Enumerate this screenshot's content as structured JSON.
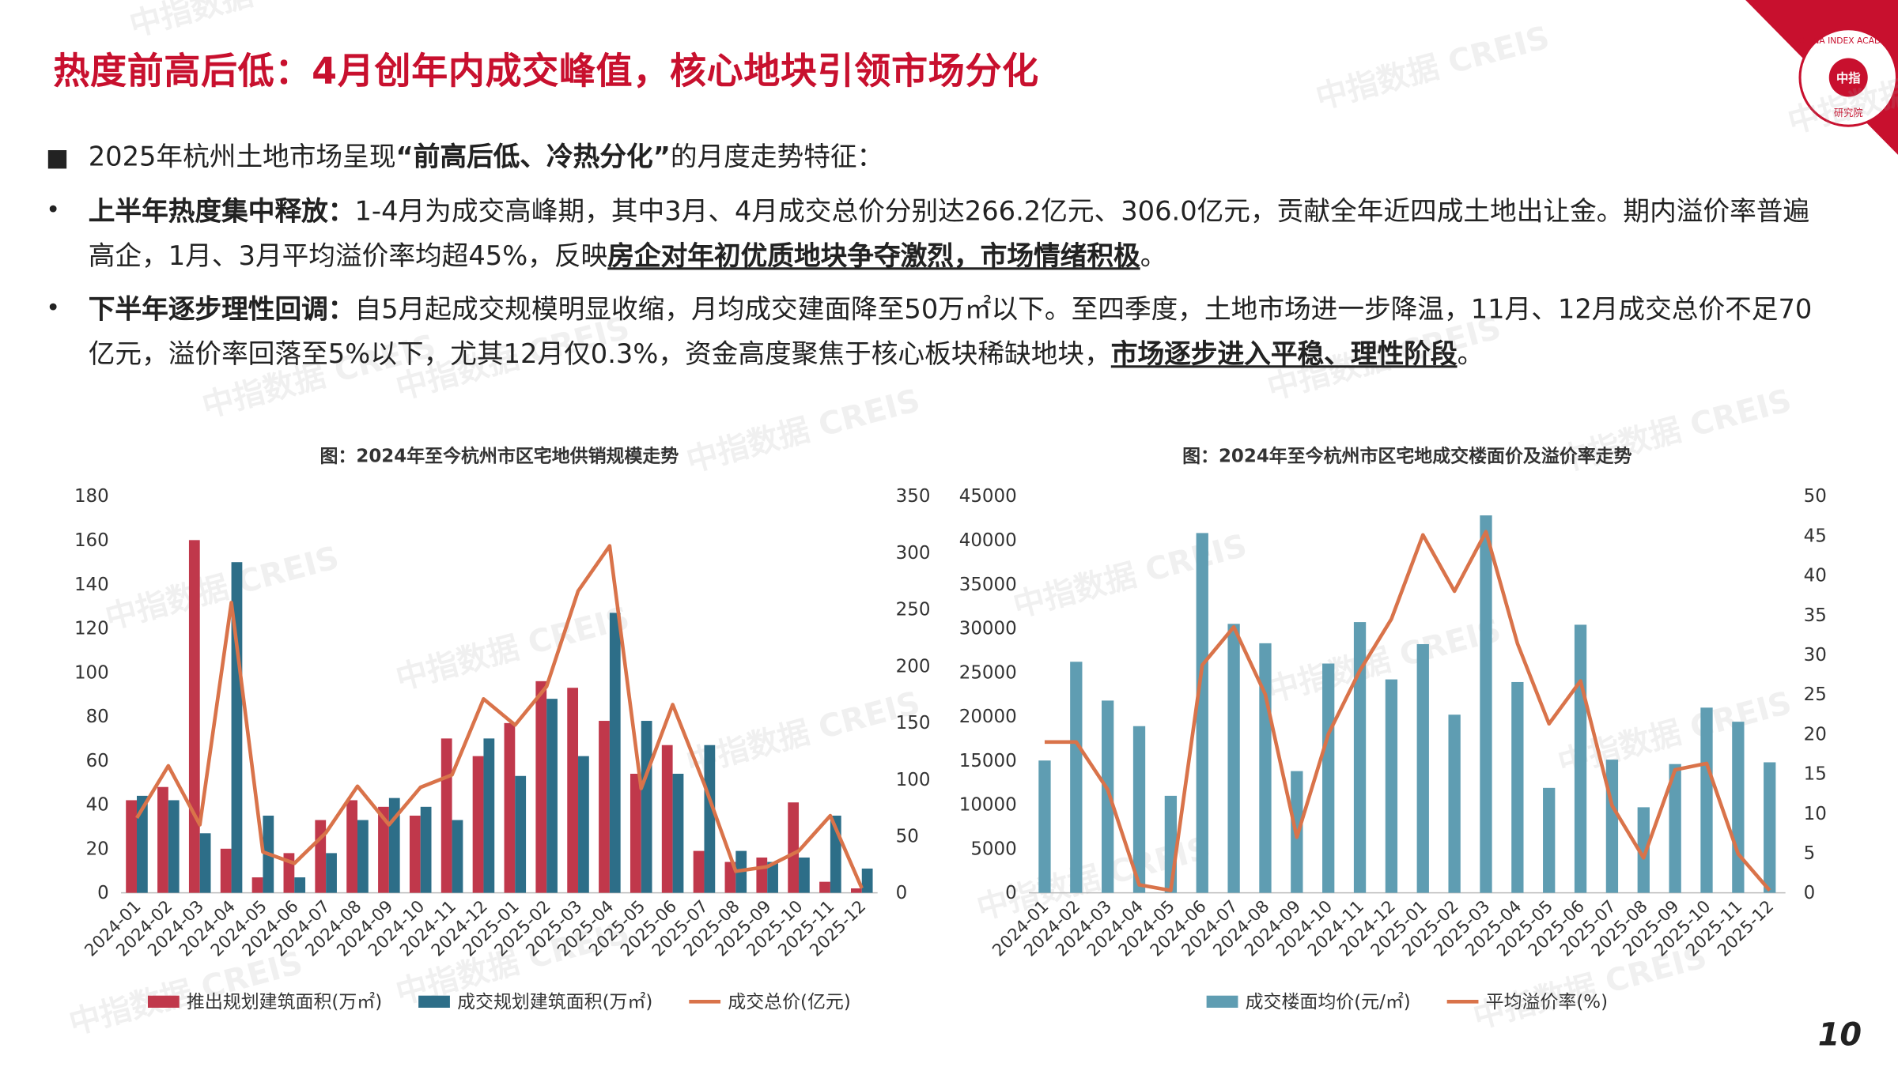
{
  "header": {
    "title": "热度前高后低：4月创年内成交峰值，核心地块引领市场分化"
  },
  "logo": {
    "en": "CHINA INDEX ACADEMY",
    "cn": "中指",
    "sub": "研究院"
  },
  "page_number": "10",
  "watermark": "中指数据 CREIS",
  "bullets": [
    [
      "2025年杭州土地市场呈现",
      "“前高后低、冷热分化”",
      "的月度走势特征："
    ],
    [
      "上半年热度集中释放：",
      "1-4月为成交高峰期，其中3月、4月成交总价分别达266.2亿元、306.0亿元，贡献全年近四成土地出让金。期内溢价率普遍高企，1月、3月平均溢价率均超45%，反映",
      "房企对年初优质地块争夺激烈，市场情绪积极",
      "。"
    ],
    [
      "下半年逐步理性回调：",
      "自5月起成交规模明显收缩，月均成交建面降至50万㎡以下。至四季度，土地市场进一步降温，11月、12月成交总价不足70亿元，溢价率回落至5%以下，尤其12月仅0.3%，资金高度聚焦于核心板块稀缺地块，",
      "市场逐步进入平稳、理性阶段",
      "。"
    ]
  ],
  "chart_data": [
    {
      "type": "bar_line",
      "title": "图：2024年至今杭州市区宅地供销规模走势",
      "categories": [
        "2024-01",
        "2024-02",
        "2024-03",
        "2024-04",
        "2024-05",
        "2024-06",
        "2024-07",
        "2024-08",
        "2024-09",
        "2024-10",
        "2024-11",
        "2024-12",
        "2025-01",
        "2025-02",
        "2025-03",
        "2025-04",
        "2025-05",
        "2025-06",
        "2025-07",
        "2025-08",
        "2025-09",
        "2025-10",
        "2025-11",
        "2025-12"
      ],
      "ylim": [
        0,
        180
      ],
      "yticks": [
        0,
        20,
        40,
        60,
        80,
        100,
        120,
        140,
        160,
        180
      ],
      "y2lim": [
        0,
        350
      ],
      "y2ticks": [
        0,
        50,
        100,
        150,
        200,
        250,
        300,
        350
      ],
      "series": [
        {
          "name": "推出规划建筑面积(万㎡)",
          "kind": "bar",
          "color": "#c0384b",
          "values": [
            42,
            48,
            160,
            20,
            7,
            18,
            33,
            42,
            39,
            35,
            70,
            62,
            77,
            96,
            93,
            78,
            54,
            67,
            19,
            14,
            16,
            41,
            5,
            2
          ]
        },
        {
          "name": "成交规划建筑面积(万㎡)",
          "kind": "bar",
          "color": "#2d6e88",
          "values": [
            44,
            42,
            27,
            150,
            35,
            7,
            18,
            33,
            43,
            39,
            33,
            70,
            53,
            88,
            62,
            127,
            78,
            54,
            67,
            19,
            14,
            16,
            35,
            11
          ]
        },
        {
          "name": "成交总价(亿元)",
          "kind": "line",
          "axis": "y2",
          "color": "#d9734a",
          "values": [
            66,
            112,
            60,
            256,
            36,
            26,
            53,
            94,
            60,
            93,
            104,
            171,
            148,
            182,
            266.2,
            306.0,
            92,
            166,
            96,
            19,
            23,
            37,
            68,
            4
          ]
        }
      ]
    },
    {
      "type": "bar_line",
      "title": "图：2024年至今杭州市区宅地成交楼面价及溢价率走势",
      "categories": [
        "2024-01",
        "2024-02",
        "2024-03",
        "2024-04",
        "2024-05",
        "2024-06",
        "2024-07",
        "2024-08",
        "2024-09",
        "2024-10",
        "2024-11",
        "2024-12",
        "2025-01",
        "2025-02",
        "2025-03",
        "2025-04",
        "2025-05",
        "2025-06",
        "2025-07",
        "2025-08",
        "2025-09",
        "2025-10",
        "2025-11",
        "2025-12"
      ],
      "ylim": [
        0,
        45000
      ],
      "yticks": [
        0,
        5000,
        10000,
        15000,
        20000,
        25000,
        30000,
        35000,
        40000,
        45000
      ],
      "y2lim": [
        0,
        50
      ],
      "y2ticks": [
        0,
        5,
        10,
        15,
        20,
        25,
        30,
        35,
        40,
        45,
        50
      ],
      "series": [
        {
          "name": "成交楼面均价(元/㎡)",
          "kind": "bar",
          "color": "#5f9db2",
          "values": [
            15000,
            26200,
            21800,
            18900,
            11000,
            40800,
            30500,
            28300,
            13800,
            26000,
            30700,
            24200,
            28200,
            20200,
            42800,
            23900,
            11900,
            30400,
            15100,
            9700,
            14600,
            21000,
            19400,
            14800
          ]
        },
        {
          "name": "平均溢价率(%)",
          "kind": "line",
          "axis": "y2",
          "color": "#d9734a",
          "values": [
            19,
            19,
            13,
            1,
            0.3,
            28.7,
            33.5,
            25,
            7,
            20,
            28,
            34.5,
            45.1,
            38,
            45.5,
            31.4,
            21.3,
            26.7,
            11,
            4.4,
            15.5,
            16.3,
            4.9,
            0.3
          ]
        }
      ]
    }
  ]
}
